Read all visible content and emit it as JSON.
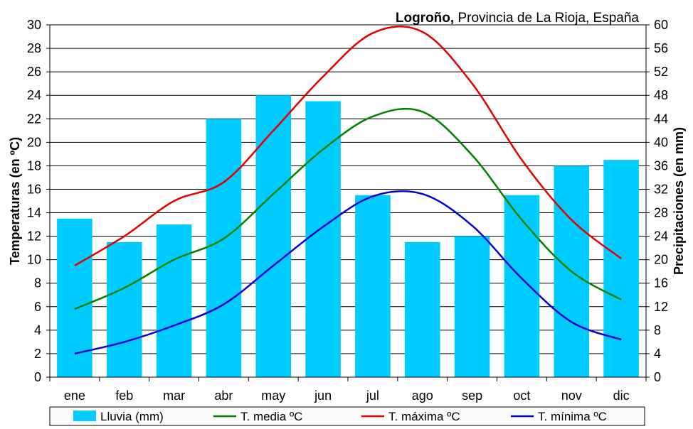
{
  "chart_data": {
    "type": "bar",
    "title_bold": "Logroño,",
    "title_rest": " Provincia de La Rioja, España",
    "categories": [
      "ene",
      "feb",
      "mar",
      "abr",
      "may",
      "jun",
      "jul",
      "ago",
      "sep",
      "oct",
      "nov",
      "dic"
    ],
    "y_left": {
      "label": "Temperaturas (en ºC)",
      "min": 0,
      "max": 30,
      "step": 2,
      "ticks": [
        "0",
        "2",
        "4",
        "6",
        "8",
        "10",
        "12",
        "14",
        "16",
        "18",
        "20",
        "22",
        "24",
        "26",
        "28",
        "30"
      ]
    },
    "y_right": {
      "label": "Precipitaciones (en mm)",
      "min": 0,
      "max": 60,
      "step": 4,
      "ticks": [
        "0",
        "4",
        "8",
        "12",
        "16",
        "20",
        "24",
        "28",
        "32",
        "36",
        "40",
        "44",
        "48",
        "52",
        "56",
        "60"
      ]
    },
    "grid": true,
    "legend_position": "bottom",
    "series": [
      {
        "name": "Lluvia (mm)",
        "kind": "bar",
        "axis": "right",
        "color": "#00ccff",
        "values": [
          27,
          23,
          26,
          44,
          48,
          47,
          31,
          23,
          24,
          31,
          36,
          37
        ]
      },
      {
        "name": "T. media ºC",
        "kind": "line",
        "axis": "left",
        "color": "#008000",
        "values": [
          5.8,
          7.6,
          10.0,
          11.8,
          15.6,
          19.4,
          22.2,
          22.6,
          18.9,
          13.4,
          9.0,
          6.6
        ]
      },
      {
        "name": "T. máxima ºC",
        "kind": "line",
        "axis": "left",
        "color": "#e00000",
        "values": [
          9.5,
          12.0,
          15.0,
          16.6,
          21.0,
          25.6,
          29.3,
          29.4,
          25.0,
          18.5,
          13.4,
          10.1
        ]
      },
      {
        "name": "T. mínima ºC",
        "kind": "line",
        "axis": "left",
        "color": "#0000d0",
        "values": [
          2.0,
          3.0,
          4.4,
          6.2,
          9.5,
          12.8,
          15.4,
          15.6,
          12.9,
          8.4,
          4.7,
          3.2
        ]
      }
    ]
  }
}
